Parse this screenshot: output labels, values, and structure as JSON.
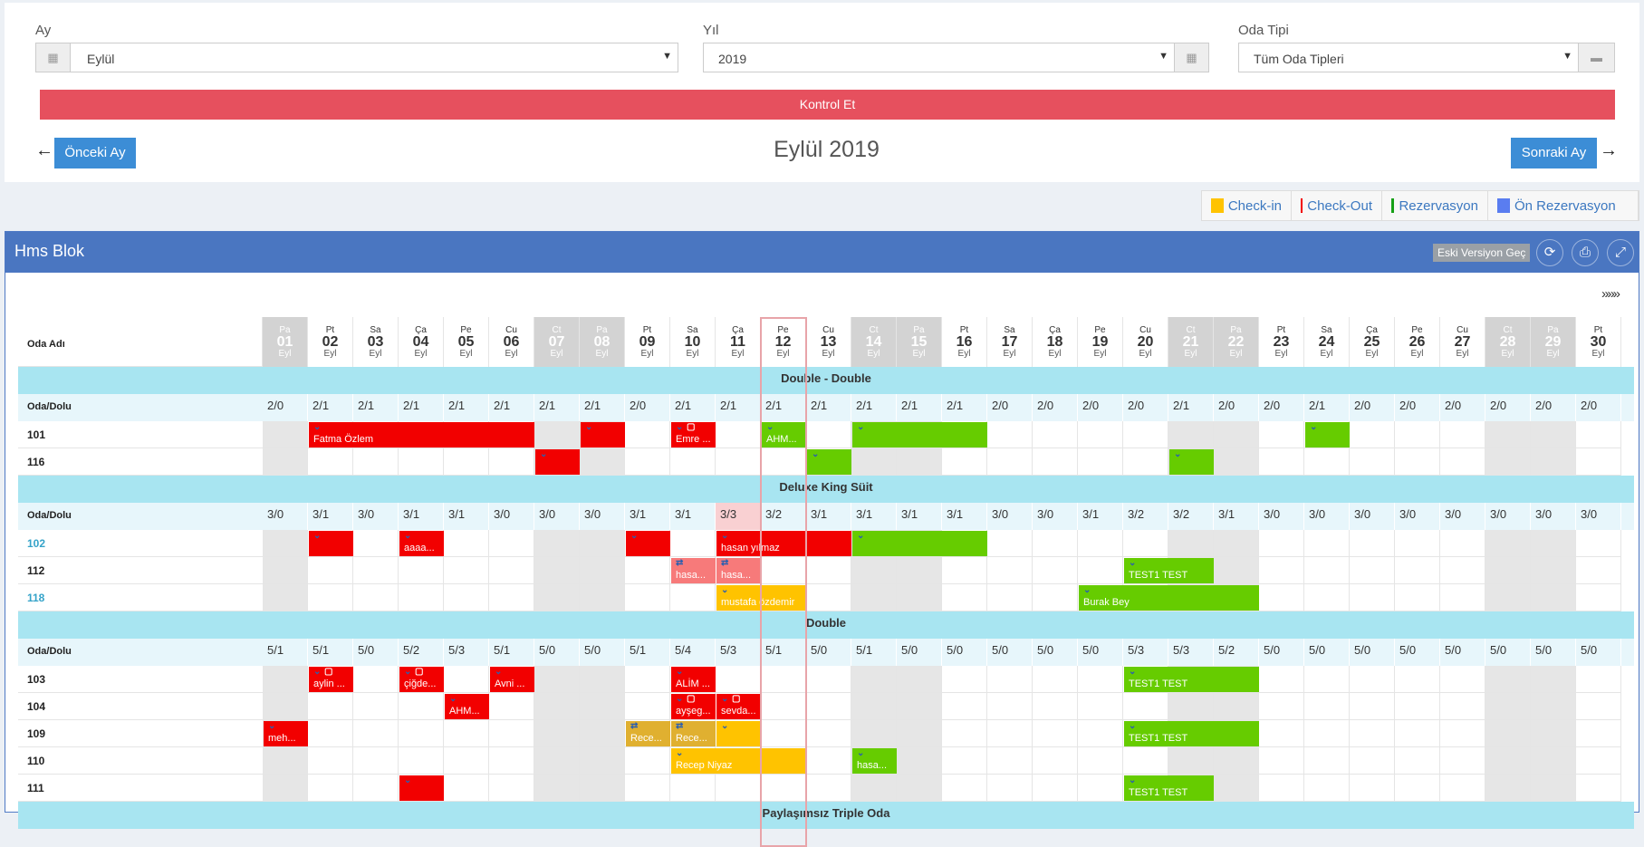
{
  "filters": {
    "month": {
      "label": "Ay",
      "value": "Eylül"
    },
    "year": {
      "label": "Yıl",
      "value": "2019"
    },
    "room_type": {
      "label": "Oda Tipi",
      "value": "Tüm Oda Tipleri"
    },
    "check_button": "Kontrol Et"
  },
  "nav": {
    "prev": "Önceki Ay",
    "next": "Sonraki Ay",
    "title": "Eylül 2019"
  },
  "legend": [
    {
      "label": "Check-in",
      "color": "#ffc300"
    },
    {
      "label": "Check-Out",
      "color": "#f20000"
    },
    {
      "label": "Rezervasyon",
      "color": "#16a016"
    },
    {
      "label": "Ön Rezervasyon",
      "color": "#5a7df0"
    }
  ],
  "panel": {
    "title": "Hms Blok",
    "old_version": "Eski Versiyon Geç",
    "expand": "»»»",
    "room_col": "Oda Adı"
  },
  "days": [
    {
      "n": "Pa",
      "d": "01",
      "m": "Eyl",
      "wk": true
    },
    {
      "n": "Pt",
      "d": "02",
      "m": "Eyl"
    },
    {
      "n": "Sa",
      "d": "03",
      "m": "Eyl"
    },
    {
      "n": "Ça",
      "d": "04",
      "m": "Eyl"
    },
    {
      "n": "Pe",
      "d": "05",
      "m": "Eyl"
    },
    {
      "n": "Cu",
      "d": "06",
      "m": "Eyl"
    },
    {
      "n": "Ct",
      "d": "07",
      "m": "Eyl",
      "wk": true
    },
    {
      "n": "Pa",
      "d": "08",
      "m": "Eyl",
      "wk": true
    },
    {
      "n": "Pt",
      "d": "09",
      "m": "Eyl"
    },
    {
      "n": "Sa",
      "d": "10",
      "m": "Eyl"
    },
    {
      "n": "Ça",
      "d": "11",
      "m": "Eyl"
    },
    {
      "n": "Pe",
      "d": "12",
      "m": "Eyl"
    },
    {
      "n": "Cu",
      "d": "13",
      "m": "Eyl"
    },
    {
      "n": "Ct",
      "d": "14",
      "m": "Eyl",
      "wk": true
    },
    {
      "n": "Pa",
      "d": "15",
      "m": "Eyl",
      "wk": true
    },
    {
      "n": "Pt",
      "d": "16",
      "m": "Eyl"
    },
    {
      "n": "Sa",
      "d": "17",
      "m": "Eyl"
    },
    {
      "n": "Ça",
      "d": "18",
      "m": "Eyl"
    },
    {
      "n": "Pe",
      "d": "19",
      "m": "Eyl"
    },
    {
      "n": "Cu",
      "d": "20",
      "m": "Eyl"
    },
    {
      "n": "Ct",
      "d": "21",
      "m": "Eyl",
      "wk": true
    },
    {
      "n": "Pa",
      "d": "22",
      "m": "Eyl",
      "wk": true
    },
    {
      "n": "Pt",
      "d": "23",
      "m": "Eyl"
    },
    {
      "n": "Sa",
      "d": "24",
      "m": "Eyl"
    },
    {
      "n": "Ça",
      "d": "25",
      "m": "Eyl"
    },
    {
      "n": "Pe",
      "d": "26",
      "m": "Eyl"
    },
    {
      "n": "Cu",
      "d": "27",
      "m": "Eyl"
    },
    {
      "n": "Ct",
      "d": "28",
      "m": "Eyl",
      "wk": true
    },
    {
      "n": "Pa",
      "d": "29",
      "m": "Eyl",
      "wk": true
    },
    {
      "n": "Pt",
      "d": "30",
      "m": "Eyl"
    }
  ],
  "today_index": 11,
  "groups": [
    {
      "name": "Double - Double",
      "occ_label": "Oda/Dolu",
      "occ": [
        "2/0",
        "2/1",
        "2/1",
        "2/1",
        "2/1",
        "2/1",
        "2/1",
        "2/1",
        "2/0",
        "2/1",
        "2/1",
        "2/1",
        "2/1",
        "2/1",
        "2/1",
        "2/1",
        "2/0",
        "2/0",
        "2/0",
        "2/0",
        "2/1",
        "2/0",
        "2/0",
        "2/1",
        "2/0",
        "2/0",
        "2/0",
        "2/0",
        "2/0",
        "2/0"
      ],
      "rooms": [
        {
          "name": "101",
          "bars": [
            {
              "s": 1,
              "e": 6,
              "t": "out",
              "label": "Fatma Özlem"
            },
            {
              "s": 7,
              "e": 8,
              "t": "out",
              "label": ""
            },
            {
              "s": 9,
              "e": 10,
              "t": "out",
              "label": "Emre ...",
              "note": true
            },
            {
              "s": 11,
              "e": 12,
              "t": "res",
              "label": "AHM..."
            },
            {
              "s": 13,
              "e": 16,
              "t": "res",
              "label": ""
            },
            {
              "s": 23,
              "e": 24,
              "t": "res",
              "label": ""
            }
          ]
        },
        {
          "name": "116",
          "bars": [
            {
              "s": 6,
              "e": 7,
              "t": "out",
              "label": ""
            },
            {
              "s": 12,
              "e": 13,
              "t": "res",
              "label": ""
            },
            {
              "s": 20,
              "e": 21,
              "t": "res",
              "label": ""
            }
          ]
        }
      ]
    },
    {
      "name": "Deluxe King Süit",
      "occ_label": "Oda/Dolu",
      "occ": [
        "3/0",
        "3/1",
        "3/0",
        "3/1",
        "3/1",
        "3/0",
        "3/0",
        "3/0",
        "3/1",
        "3/1",
        "3/3",
        "3/2",
        "3/1",
        "3/1",
        "3/1",
        "3/1",
        "3/0",
        "3/0",
        "3/1",
        "3/2",
        "3/2",
        "3/1",
        "3/0",
        "3/0",
        "3/0",
        "3/0",
        "3/0",
        "3/0",
        "3/0",
        "3/0"
      ],
      "full_index": 10,
      "rooms": [
        {
          "name": "102",
          "link": true,
          "bars": [
            {
              "s": 1,
              "e": 2,
              "t": "out",
              "label": ""
            },
            {
              "s": 3,
              "e": 4,
              "t": "out",
              "label": "aaaa..."
            },
            {
              "s": 8,
              "e": 9,
              "t": "out",
              "label": ""
            },
            {
              "s": 10,
              "e": 13,
              "t": "out",
              "label": "hasan yılmaz"
            },
            {
              "s": 13,
              "e": 16,
              "t": "res",
              "label": ""
            }
          ]
        },
        {
          "name": "112",
          "bars": [
            {
              "s": 9,
              "e": 10,
              "t": "light",
              "label": "hasa...",
              "sw": true
            },
            {
              "s": 10,
              "e": 11,
              "t": "light",
              "label": "hasa...",
              "sw": true
            },
            {
              "s": 19,
              "e": 21,
              "t": "res",
              "label": "TEST1 TEST"
            }
          ]
        },
        {
          "name": "118",
          "link": true,
          "bars": [
            {
              "s": 10,
              "e": 12,
              "t": "in",
              "label": "mustafa özdemir"
            },
            {
              "s": 18,
              "e": 22,
              "t": "res",
              "label": "Burak Bey"
            }
          ]
        }
      ]
    },
    {
      "name": "Double",
      "occ_label": "Oda/Dolu",
      "occ": [
        "5/1",
        "5/1",
        "5/0",
        "5/2",
        "5/3",
        "5/1",
        "5/0",
        "5/0",
        "5/1",
        "5/4",
        "5/3",
        "5/1",
        "5/0",
        "5/1",
        "5/0",
        "5/0",
        "5/0",
        "5/0",
        "5/0",
        "5/3",
        "5/3",
        "5/2",
        "5/0",
        "5/0",
        "5/0",
        "5/0",
        "5/0",
        "5/0",
        "5/0",
        "5/0"
      ],
      "rooms": [
        {
          "name": "103",
          "bars": [
            {
              "s": 1,
              "e": 2,
              "t": "out",
              "label": "aylin ...",
              "note": true
            },
            {
              "s": 3,
              "e": 4,
              "t": "out",
              "label": "çiğde...",
              "note": true
            },
            {
              "s": 5,
              "e": 6,
              "t": "out",
              "label": "Avni ..."
            },
            {
              "s": 9,
              "e": 10,
              "t": "out",
              "label": "ALİM ..."
            },
            {
              "s": 19,
              "e": 22,
              "t": "res",
              "label": "TEST1 TEST"
            }
          ]
        },
        {
          "name": "104",
          "bars": [
            {
              "s": 4,
              "e": 5,
              "t": "out",
              "label": "AHM..."
            },
            {
              "s": 9,
              "e": 10,
              "t": "out",
              "label": "ayşeg...",
              "note": true
            },
            {
              "s": 10,
              "e": 11,
              "t": "out",
              "label": "sevda...",
              "note": true
            }
          ]
        },
        {
          "name": "109",
          "bars": [
            {
              "s": 0,
              "e": 1,
              "t": "out",
              "label": "meh..."
            },
            {
              "s": 8,
              "e": 9,
              "t": "pin",
              "label": "Rece...",
              "sw": true
            },
            {
              "s": 9,
              "e": 10,
              "t": "pin",
              "label": "Rece...",
              "sw": true
            },
            {
              "s": 10,
              "e": 11,
              "t": "in",
              "label": ""
            },
            {
              "s": 19,
              "e": 22,
              "t": "res",
              "label": "TEST1 TEST"
            }
          ]
        },
        {
          "name": "110",
          "bars": [
            {
              "s": 9,
              "e": 12,
              "t": "in",
              "label": "Recep Niyaz"
            },
            {
              "s": 13,
              "e": 14,
              "t": "res",
              "label": "hasa..."
            }
          ]
        },
        {
          "name": "111",
          "bars": [
            {
              "s": 3,
              "e": 4,
              "t": "out",
              "label": ""
            },
            {
              "s": 19,
              "e": 21,
              "t": "res",
              "label": "TEST1 TEST"
            }
          ]
        }
      ]
    },
    {
      "name": "Paylaşımsız Triple Oda",
      "rooms": []
    }
  ]
}
